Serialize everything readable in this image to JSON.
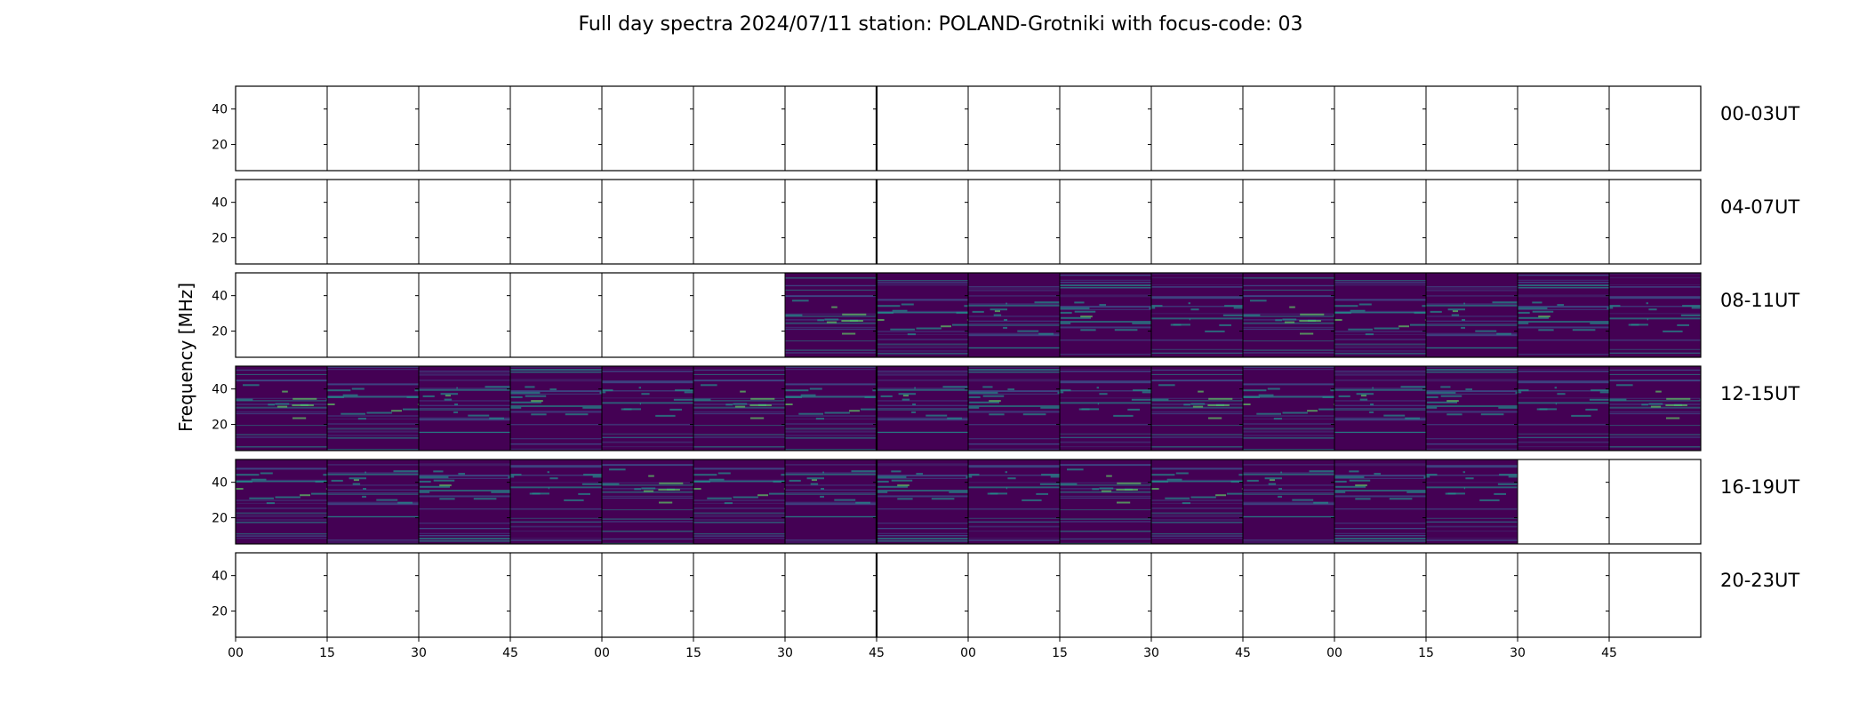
{
  "chart_data": {
    "type": "heatmap",
    "title": "Full day spectra 2024/07/11 station: POLAND-Grotniki with focus-code: 03",
    "ylabel": "Frequency [MHz]",
    "xlabel": "",
    "y_ticks": [
      "40",
      "20"
    ],
    "x_ticks": [
      "00",
      "15",
      "30",
      "45",
      "00",
      "15",
      "30",
      "45",
      "00",
      "15",
      "30",
      "45",
      "00",
      "15",
      "30",
      "45"
    ],
    "colormap": [
      "#440154",
      "#3b528b",
      "#21918c",
      "#5ec962",
      "#fde725"
    ],
    "rows": [
      {
        "label": "00-03UT",
        "coverage": [
          0,
          0,
          0,
          0,
          0,
          0,
          0,
          0,
          0,
          0,
          0,
          0,
          0,
          0,
          0,
          0
        ]
      },
      {
        "label": "04-07UT",
        "coverage": [
          0,
          0,
          0,
          0,
          0,
          0,
          0,
          0,
          0,
          0,
          0,
          0,
          0,
          0,
          0,
          0
        ]
      },
      {
        "label": "08-11UT",
        "coverage": [
          0,
          0,
          0,
          0,
          0,
          0,
          1,
          1,
          1,
          1,
          1,
          1,
          1,
          1,
          1,
          1
        ]
      },
      {
        "label": "12-15UT",
        "coverage": [
          1,
          1,
          1,
          1,
          1,
          1,
          1,
          1,
          1,
          1,
          1,
          1,
          1,
          1,
          1,
          1
        ]
      },
      {
        "label": "16-19UT",
        "coverage": [
          1,
          1,
          1,
          1,
          1,
          1,
          1,
          1,
          1,
          1,
          1,
          1,
          1,
          1,
          0,
          0
        ]
      },
      {
        "label": "20-23UT",
        "coverage": [
          0,
          0,
          0,
          0,
          0,
          0,
          0,
          0,
          0,
          0,
          0,
          0,
          0,
          0,
          0,
          0
        ]
      }
    ]
  }
}
